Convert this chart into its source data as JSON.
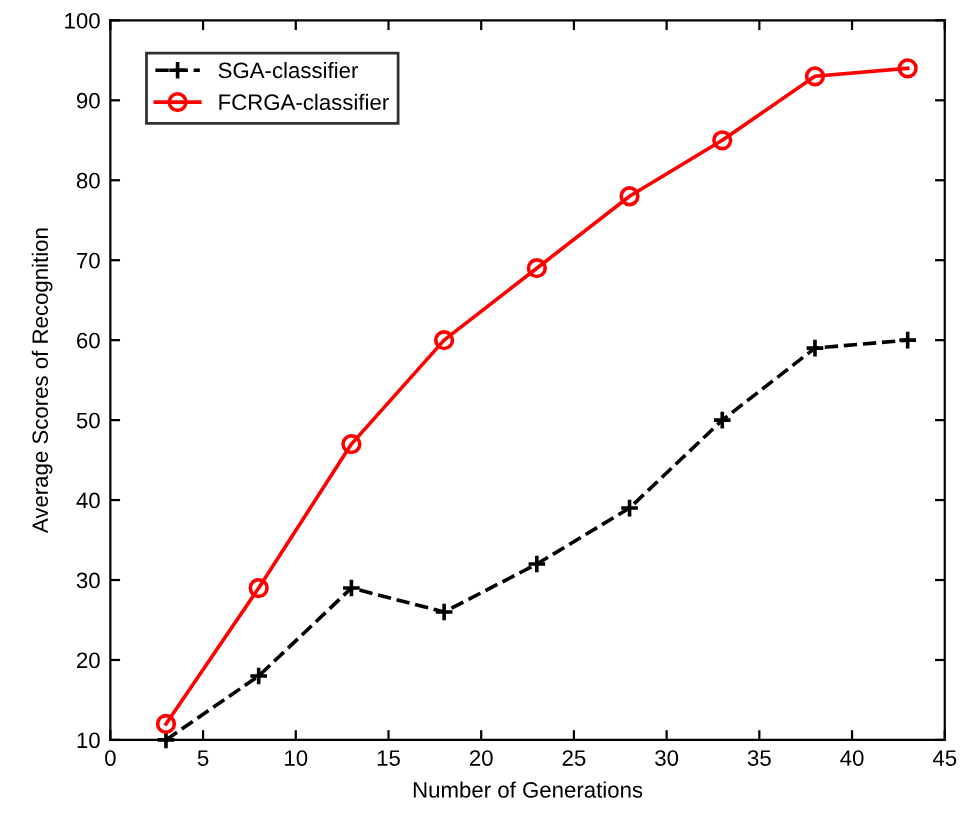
{
  "chart_data": {
    "type": "line",
    "xlabel": "Number of Generations",
    "ylabel": "Average Scores of Recognition",
    "x": [
      3,
      8,
      13,
      18,
      23,
      28,
      33,
      38,
      43
    ],
    "series": [
      {
        "name": "SGA-classifier",
        "color": "#000000",
        "marker": "cross",
        "line_style": "dashed",
        "values": [
          10,
          18,
          29,
          26,
          32,
          39,
          50,
          59,
          60
        ]
      },
      {
        "name": "FCRGA-classifier",
        "color": "#ff0000",
        "marker": "circle",
        "line_style": "solid",
        "values": [
          12,
          29,
          47,
          60,
          69,
          78,
          85,
          93,
          94
        ]
      }
    ],
    "xlim": [
      0,
      45
    ],
    "xticks": [
      0,
      5,
      10,
      15,
      20,
      25,
      30,
      35,
      40,
      45
    ],
    "ylim": [
      10,
      100
    ],
    "yticks": [
      10,
      20,
      30,
      40,
      50,
      60,
      70,
      80,
      90,
      100
    ],
    "grid": false,
    "legend": "top left"
  }
}
